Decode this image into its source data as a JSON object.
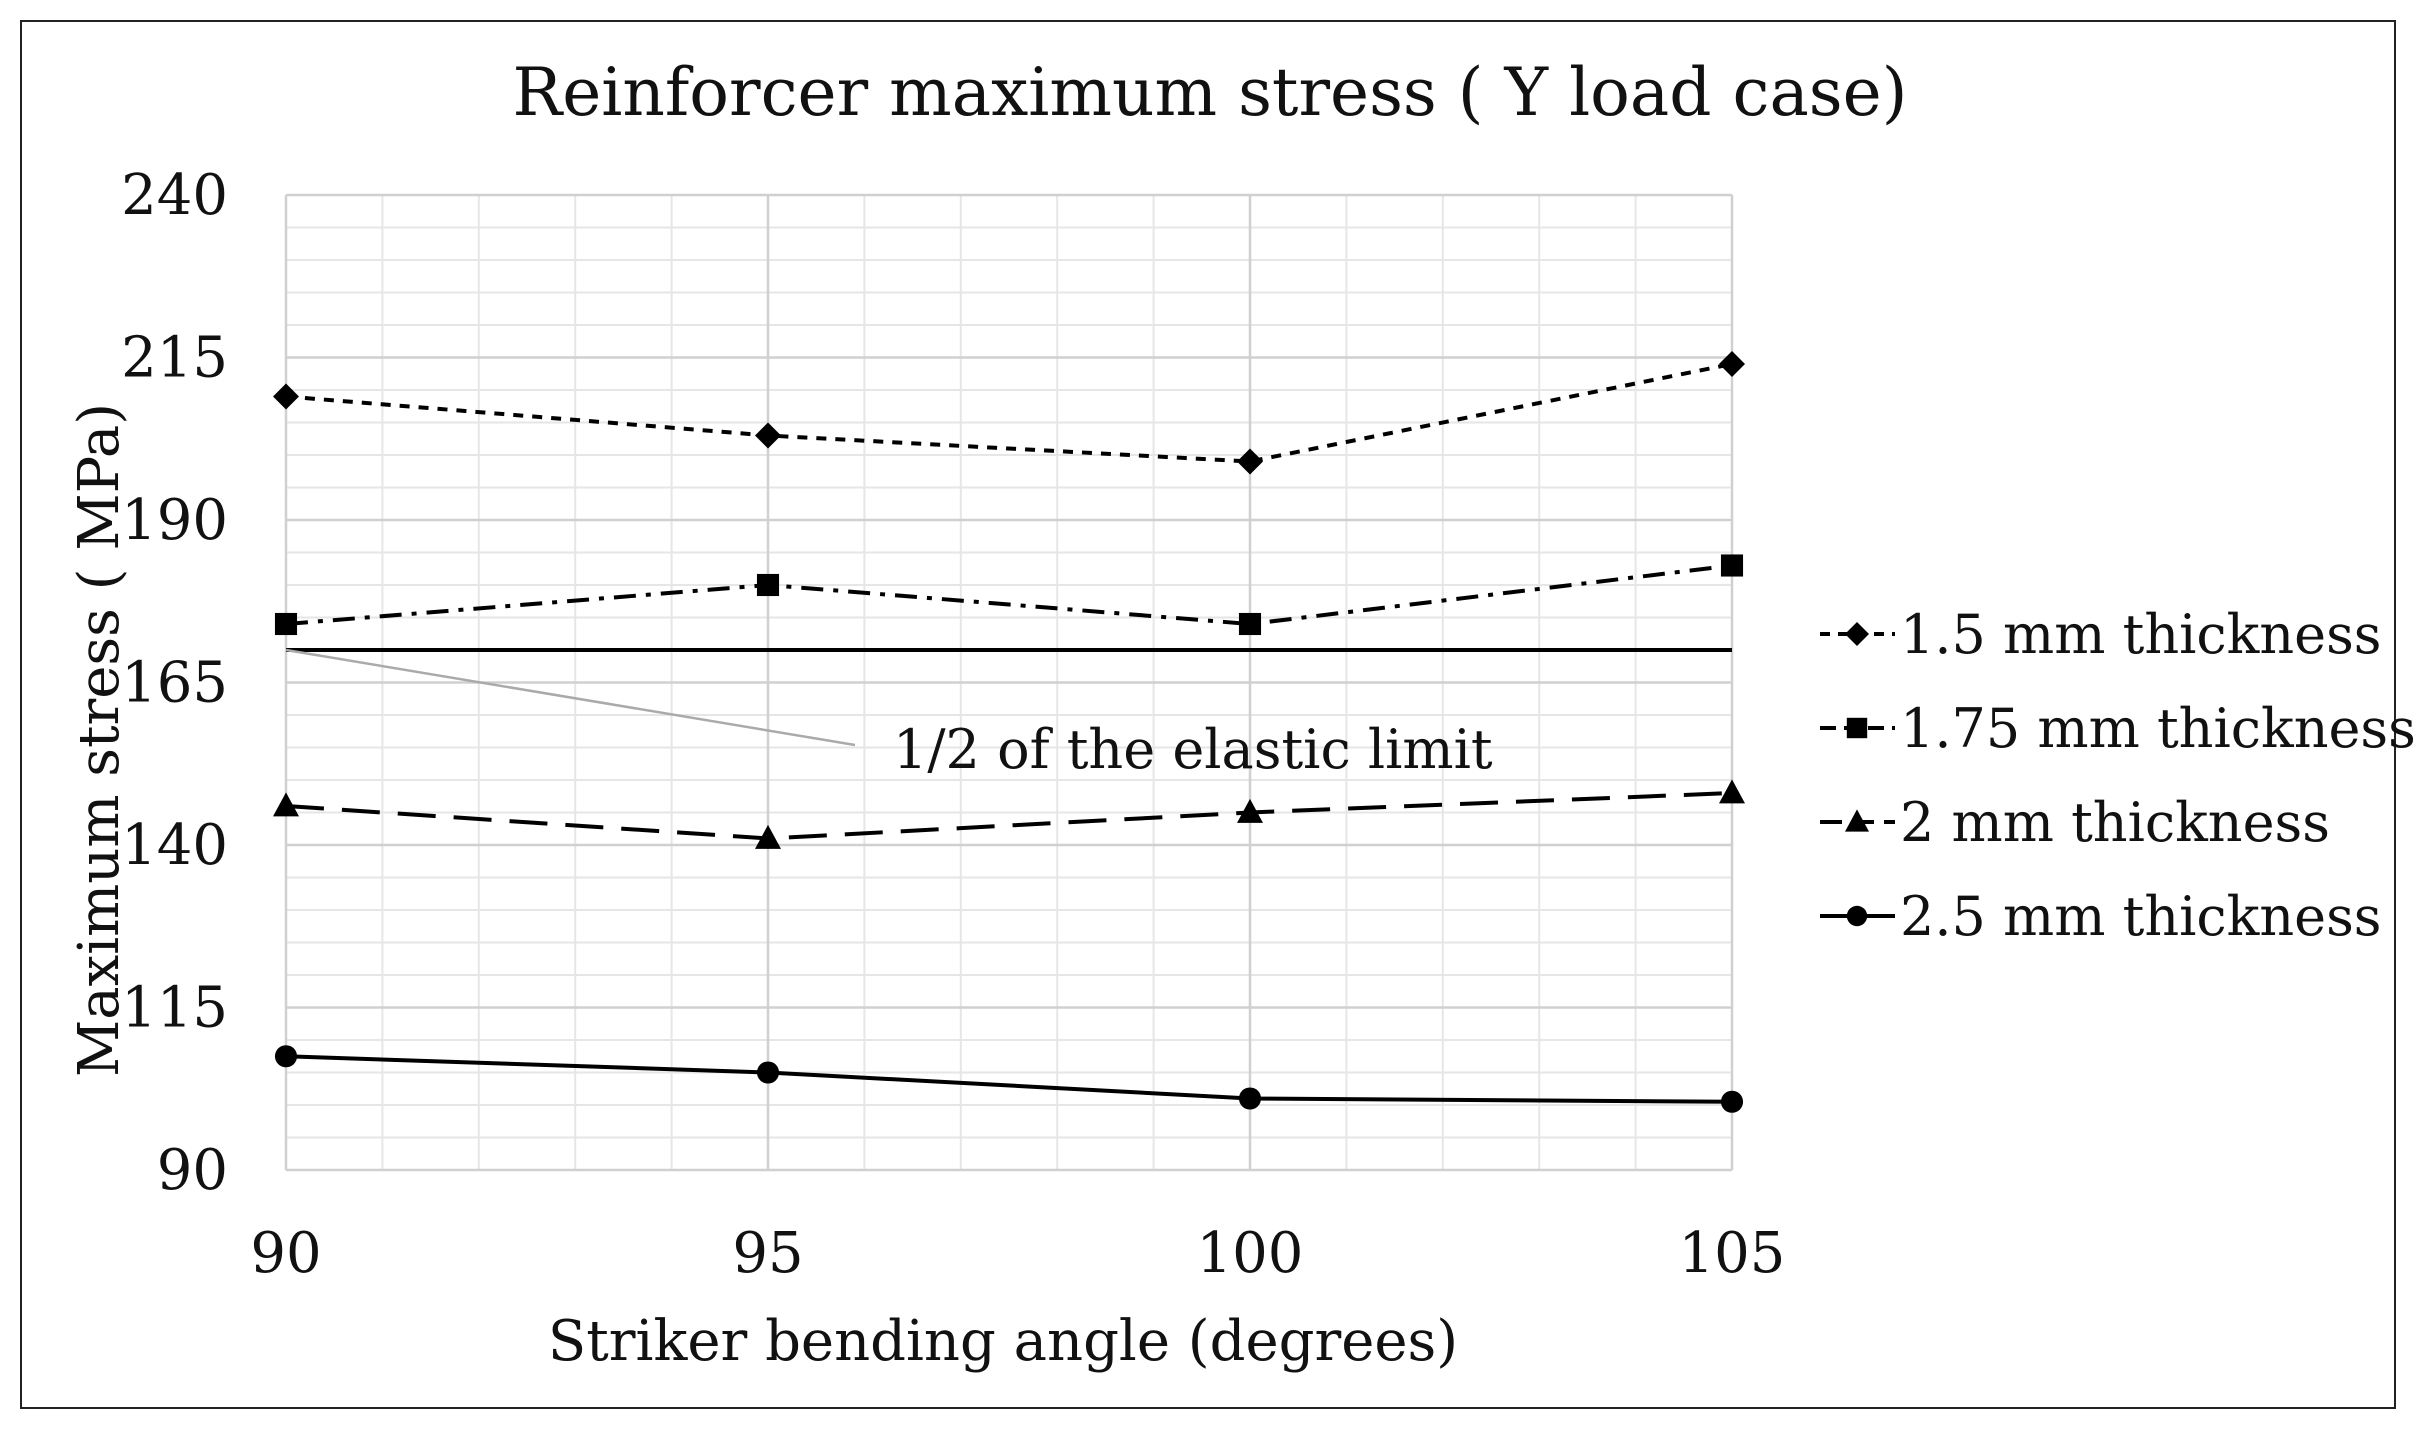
{
  "chart_data": {
    "type": "line",
    "title": "Reinforcer maximum stress ( Y load case)",
    "xlabel": "Striker bending angle (degrees)",
    "ylabel": "Maximum stress ( MPa)",
    "x": [
      90,
      95,
      100,
      105
    ],
    "x_tick_labels": [
      "90",
      "95",
      "100",
      "105"
    ],
    "ylim": [
      90,
      240
    ],
    "y_ticks": [
      90,
      115,
      140,
      165,
      190,
      215,
      240
    ],
    "y_tick_labels": [
      "90",
      "115",
      "140",
      "165",
      "190",
      "215",
      "240"
    ],
    "grid": true,
    "legend_position": "right",
    "series": [
      {
        "name": "1.5 mm thickness",
        "marker": "diamond",
        "dash": "short-dash",
        "values": [
          209,
          203,
          199,
          214
        ]
      },
      {
        "name": "1.75 mm thickness",
        "marker": "square",
        "dash": "dash-dot",
        "values": [
          174,
          180,
          174,
          183
        ]
      },
      {
        "name": "2 mm thickness",
        "marker": "triangle",
        "dash": "long-dash",
        "values": [
          146,
          141,
          145,
          148
        ]
      },
      {
        "name": "2.5 mm thickness",
        "marker": "circle",
        "dash": "solid",
        "values": [
          107.5,
          105,
          101,
          100.5
        ]
      }
    ],
    "reference_line": {
      "value": 170,
      "label": "1/2 of the elastic limit"
    },
    "colors": {
      "line": "#000000",
      "grid_major": "#d0d0d0",
      "grid_minor": "#e6e6e6",
      "leader": "#aaaaaa"
    }
  }
}
